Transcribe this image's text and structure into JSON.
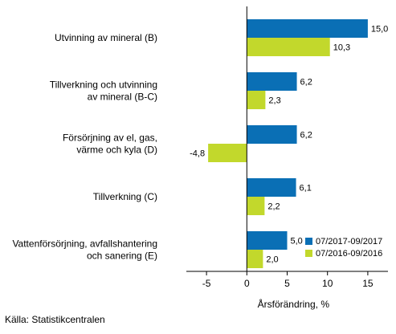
{
  "chart_data": {
    "type": "bar",
    "orientation": "horizontal",
    "categories": [
      [
        "Utvinning av mineral (B)"
      ],
      [
        "Tillverkning och utvinning",
        "av mineral (B-C)"
      ],
      [
        "Försörjning av el, gas,",
        "värme och kyla (D)"
      ],
      [
        "Tillverkning (C)"
      ],
      [
        "Vattenförsörjning, avfallshantering",
        "och sanering (E)"
      ]
    ],
    "series": [
      {
        "name": "07/2017-09/2017",
        "color": "#0a6fb5",
        "values": [
          15.0,
          6.2,
          6.2,
          6.1,
          5.0
        ],
        "labels": [
          "15,0",
          "6,2",
          "6,2",
          "6,1",
          "5,0"
        ]
      },
      {
        "name": "07/2016-09/2016",
        "color": "#c2d82c",
        "values": [
          10.3,
          2.3,
          -4.8,
          2.2,
          2.0
        ],
        "labels": [
          "10,3",
          "2,3",
          "-4,8",
          "2,2",
          "2,0"
        ]
      }
    ],
    "xlabel": "Årsförändring, %",
    "xlim": [
      -7.5,
      17.5
    ],
    "xticks": [
      -5,
      0,
      5,
      10,
      15
    ],
    "xtick_labels": [
      "-5",
      "0",
      "5",
      "10",
      "15"
    ],
    "legend_position": "bottom-right",
    "grid": false
  },
  "footer": {
    "source": "Källa: Statistikcentralen"
  }
}
